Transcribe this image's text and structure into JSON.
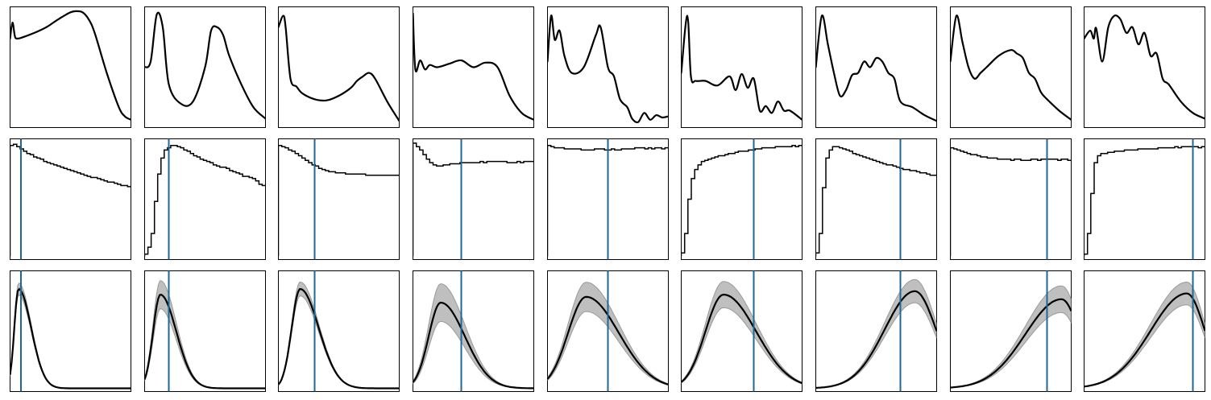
{
  "chart_data": {
    "type": "panel-grid",
    "layout": {
      "rows": 3,
      "columns": 9
    },
    "axes": {
      "ticks": false,
      "tick_labels": false,
      "grid": false
    },
    "colors": {
      "curve": "#000000",
      "marker_line": "#1f6796",
      "band": "#bfbfbf",
      "band_edge": "#9a9a9a"
    },
    "rows": [
      {
        "type": "line",
        "panels": [
          {
            "x": [
              0,
              0.02,
              0.04,
              0.06,
              0.1,
              0.2,
              0.3,
              0.4,
              0.5,
              0.55,
              0.6,
              0.65,
              0.7,
              0.8,
              0.9,
              0.95,
              1.0
            ],
            "y": [
              0.75,
              0.89,
              0.77,
              0.75,
              0.76,
              0.8,
              0.85,
              0.92,
              0.98,
              0.99,
              0.98,
              0.92,
              0.8,
              0.45,
              0.15,
              0.07,
              0.04
            ]
          },
          {
            "x": [
              0,
              0.05,
              0.1,
              0.15,
              0.2,
              0.3,
              0.4,
              0.5,
              0.55,
              0.6,
              0.65,
              0.7,
              0.8,
              0.9,
              1.0
            ],
            "y": [
              0.5,
              0.55,
              0.96,
              0.85,
              0.35,
              0.18,
              0.2,
              0.5,
              0.82,
              0.85,
              0.78,
              0.6,
              0.35,
              0.15,
              0.05
            ]
          },
          {
            "x": [
              0,
              0.04,
              0.06,
              0.1,
              0.15,
              0.2,
              0.3,
              0.4,
              0.5,
              0.6,
              0.65,
              0.7,
              0.75,
              0.8,
              0.9,
              1.0
            ],
            "y": [
              0.85,
              0.95,
              0.85,
              0.4,
              0.33,
              0.27,
              0.22,
              0.21,
              0.25,
              0.32,
              0.38,
              0.42,
              0.45,
              0.4,
              0.2,
              0.03
            ]
          },
          {
            "x": [
              0,
              0.02,
              0.06,
              0.1,
              0.14,
              0.2,
              0.3,
              0.4,
              0.5,
              0.6,
              0.7,
              0.8,
              0.9,
              1.0
            ],
            "y": [
              0.97,
              0.48,
              0.56,
              0.48,
              0.52,
              0.5,
              0.53,
              0.56,
              0.5,
              0.54,
              0.5,
              0.25,
              0.1,
              0.04
            ]
          },
          {
            "x": [
              0,
              0.03,
              0.06,
              0.1,
              0.14,
              0.2,
              0.3,
              0.4,
              0.44,
              0.5,
              0.55,
              0.6,
              0.66,
              0.7,
              0.75,
              0.8,
              0.85,
              0.9,
              0.95,
              1.0
            ],
            "y": [
              0.55,
              0.95,
              0.74,
              0.82,
              0.6,
              0.45,
              0.5,
              0.78,
              0.85,
              0.5,
              0.42,
              0.22,
              0.15,
              0.05,
              0.02,
              0.1,
              0.04,
              0.08,
              0.06,
              0.07
            ]
          },
          {
            "x": [
              0,
              0.05,
              0.08,
              0.12,
              0.2,
              0.3,
              0.4,
              0.45,
              0.5,
              0.55,
              0.6,
              0.65,
              0.7,
              0.75,
              0.8,
              0.85,
              0.9,
              1.0
            ],
            "y": [
              0.45,
              0.95,
              0.42,
              0.38,
              0.38,
              0.34,
              0.42,
              0.3,
              0.44,
              0.32,
              0.4,
              0.12,
              0.16,
              0.1,
              0.2,
              0.12,
              0.12,
              0.04
            ]
          },
          {
            "x": [
              0,
              0.05,
              0.1,
              0.15,
              0.2,
              0.25,
              0.3,
              0.35,
              0.4,
              0.45,
              0.5,
              0.55,
              0.6,
              0.65,
              0.7,
              0.8,
              0.9,
              1.0
            ],
            "y": [
              0.5,
              0.95,
              0.7,
              0.45,
              0.25,
              0.3,
              0.43,
              0.45,
              0.55,
              0.5,
              0.58,
              0.55,
              0.45,
              0.4,
              0.2,
              0.15,
              0.08,
              0.03
            ]
          },
          {
            "x": [
              0,
              0.05,
              0.1,
              0.15,
              0.2,
              0.25,
              0.3,
              0.4,
              0.5,
              0.55,
              0.6,
              0.65,
              0.7,
              0.75,
              0.8,
              0.9,
              1.0
            ],
            "y": [
              0.55,
              0.95,
              0.72,
              0.5,
              0.4,
              0.45,
              0.5,
              0.6,
              0.65,
              0.62,
              0.58,
              0.45,
              0.4,
              0.28,
              0.22,
              0.12,
              0.04
            ]
          },
          {
            "x": [
              0,
              0.05,
              0.08,
              0.1,
              0.15,
              0.2,
              0.25,
              0.3,
              0.35,
              0.4,
              0.45,
              0.5,
              0.55,
              0.6,
              0.65,
              0.7,
              0.8,
              0.9,
              1.0
            ],
            "y": [
              0.75,
              0.82,
              0.75,
              0.84,
              0.55,
              0.85,
              0.95,
              0.92,
              0.8,
              0.85,
              0.7,
              0.8,
              0.6,
              0.62,
              0.4,
              0.35,
              0.2,
              0.1,
              0.05
            ]
          }
        ]
      },
      {
        "type": "step",
        "ylim": [
          0,
          1
        ],
        "panels": [
          {
            "marker_x": 0.09,
            "y": [
              0.97,
              0.98,
              0.96,
              0.94,
              0.92,
              0.9,
              0.89,
              0.87,
              0.86,
              0.85,
              0.83,
              0.82,
              0.81,
              0.8,
              0.79,
              0.78,
              0.77,
              0.76,
              0.75,
              0.74,
              0.73,
              0.72,
              0.71,
              0.7,
              0.69,
              0.69,
              0.68,
              0.67,
              0.66,
              0.65,
              0.65,
              0.64,
              0.63,
              0.62,
              0.62,
              0.61
            ]
          },
          {
            "marker_x": 0.2,
            "y": [
              0.02,
              0.08,
              0.2,
              0.48,
              0.72,
              0.86,
              0.93,
              0.95,
              0.97,
              0.97,
              0.96,
              0.95,
              0.93,
              0.92,
              0.9,
              0.88,
              0.87,
              0.85,
              0.84,
              0.83,
              0.82,
              0.8,
              0.79,
              0.78,
              0.78,
              0.77,
              0.75,
              0.74,
              0.73,
              0.72,
              0.7,
              0.7,
              0.69,
              0.68,
              0.66,
              0.63,
              0.62
            ]
          },
          {
            "marker_x": 0.3,
            "y": [
              0.97,
              0.96,
              0.95,
              0.93,
              0.92,
              0.9,
              0.88,
              0.86,
              0.84,
              0.82,
              0.8,
              0.79,
              0.77,
              0.76,
              0.75,
              0.74,
              0.74,
              0.73,
              0.73,
              0.73,
              0.72,
              0.72,
              0.72,
              0.72,
              0.72,
              0.72,
              0.71,
              0.71,
              0.71,
              0.71,
              0.71,
              0.71,
              0.71,
              0.71,
              0.71,
              0.71
            ]
          },
          {
            "marker_x": 0.4,
            "y": [
              0.99,
              0.96,
              0.93,
              0.89,
              0.85,
              0.82,
              0.8,
              0.79,
              0.79,
              0.8,
              0.8,
              0.81,
              0.81,
              0.81,
              0.82,
              0.82,
              0.82,
              0.82,
              0.82,
              0.82,
              0.83,
              0.82,
              0.83,
              0.83,
              0.83,
              0.83,
              0.83,
              0.83,
              0.82,
              0.82,
              0.82,
              0.83,
              0.82,
              0.83,
              0.83,
              0.83
            ]
          },
          {
            "marker_x": 0.5,
            "y": [
              0.97,
              0.96,
              0.95,
              0.95,
              0.95,
              0.94,
              0.94,
              0.94,
              0.94,
              0.94,
              0.93,
              0.93,
              0.93,
              0.93,
              0.94,
              0.94,
              0.94,
              0.93,
              0.93,
              0.94,
              0.93,
              0.93,
              0.94,
              0.94,
              0.94,
              0.94,
              0.95,
              0.95,
              0.95,
              0.94,
              0.95,
              0.94,
              0.95,
              0.95,
              0.94,
              0.95
            ]
          },
          {
            "marker_x": 0.6,
            "y": [
              0.03,
              0.2,
              0.5,
              0.68,
              0.76,
              0.8,
              0.83,
              0.84,
              0.85,
              0.86,
              0.87,
              0.88,
              0.88,
              0.89,
              0.9,
              0.9,
              0.91,
              0.92,
              0.92,
              0.92,
              0.93,
              0.93,
              0.94,
              0.94,
              0.95,
              0.95,
              0.95,
              0.95,
              0.96,
              0.96,
              0.96,
              0.96,
              0.96,
              0.97,
              0.96,
              0.97
            ]
          },
          {
            "marker_x": 0.7,
            "y": [
              0.03,
              0.2,
              0.6,
              0.86,
              0.93,
              0.96,
              0.96,
              0.95,
              0.94,
              0.93,
              0.92,
              0.9,
              0.89,
              0.88,
              0.87,
              0.86,
              0.85,
              0.84,
              0.83,
              0.82,
              0.81,
              0.8,
              0.8,
              0.79,
              0.78,
              0.77,
              0.76,
              0.76,
              0.75,
              0.75,
              0.74,
              0.73,
              0.73,
              0.72,
              0.71,
              0.71
            ]
          },
          {
            "marker_x": 0.8,
            "y": [
              0.95,
              0.94,
              0.93,
              0.92,
              0.91,
              0.9,
              0.89,
              0.89,
              0.88,
              0.87,
              0.87,
              0.86,
              0.86,
              0.86,
              0.85,
              0.85,
              0.85,
              0.85,
              0.84,
              0.85,
              0.85,
              0.84,
              0.84,
              0.84,
              0.85,
              0.85,
              0.84,
              0.85,
              0.85,
              0.85,
              0.85,
              0.85,
              0.84,
              0.85,
              0.85,
              0.84
            ]
          },
          {
            "marker_x": 0.9,
            "y": [
              0.02,
              0.2,
              0.55,
              0.82,
              0.88,
              0.9,
              0.9,
              0.91,
              0.91,
              0.92,
              0.92,
              0.92,
              0.93,
              0.93,
              0.93,
              0.93,
              0.94,
              0.94,
              0.94,
              0.94,
              0.94,
              0.94,
              0.95,
              0.95,
              0.95,
              0.95,
              0.95,
              0.96,
              0.95,
              0.96,
              0.96,
              0.96,
              0.96,
              0.96,
              0.95,
              0.96
            ]
          }
        ]
      },
      {
        "type": "area",
        "ylim": [
          0,
          1
        ],
        "panels": [
          {
            "peak": 0.07,
            "sigma": 0.035,
            "skew": 3.0,
            "height": 0.87,
            "band": 0.06,
            "marker_x": 0.09
          },
          {
            "peak": 0.13,
            "sigma": 0.06,
            "skew": 2.2,
            "height": 0.82,
            "band": 0.15,
            "marker_x": 0.2
          },
          {
            "peak": 0.18,
            "sigma": 0.07,
            "skew": 2.2,
            "height": 0.87,
            "band": 0.07,
            "marker_x": 0.3
          },
          {
            "peak": 0.23,
            "sigma": 0.1,
            "skew": 2.0,
            "height": 0.75,
            "band": 0.22,
            "marker_x": 0.4
          },
          {
            "peak": 0.32,
            "sigma": 0.15,
            "skew": 1.8,
            "height": 0.8,
            "band": 0.16,
            "marker_x": 0.5
          },
          {
            "peak": 0.35,
            "sigma": 0.15,
            "skew": 1.8,
            "height": 0.82,
            "band": 0.14,
            "marker_x": 0.6
          },
          {
            "peak": 0.82,
            "sigma": 0.25,
            "skew": 0.7,
            "height": 0.85,
            "band": 0.12,
            "marker_x": 0.7
          },
          {
            "peak": 0.92,
            "sigma": 0.3,
            "skew": 0.5,
            "height": 0.78,
            "band": 0.15,
            "marker_x": 0.8
          },
          {
            "peak": 0.85,
            "sigma": 0.3,
            "skew": 0.5,
            "height": 0.83,
            "band": 0.12,
            "marker_x": 0.9
          }
        ]
      }
    ]
  }
}
